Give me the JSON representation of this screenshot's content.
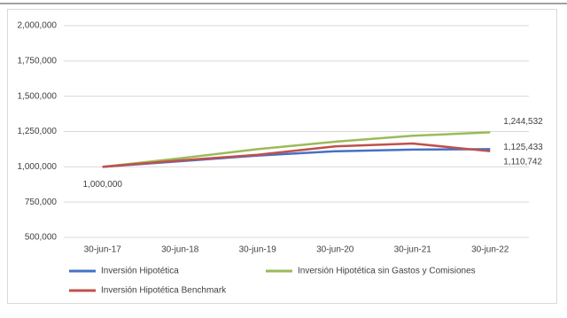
{
  "chart_data": {
    "type": "line",
    "categories": [
      "30-jun-17",
      "30-jun-18",
      "30-jun-19",
      "30-jun-20",
      "30-jun-21",
      "30-jun-22"
    ],
    "series": [
      {
        "name": "Inversión Hipotética",
        "color": "#4472c4",
        "values": [
          1000000,
          1040000,
          1080000,
          1110000,
          1122000,
          1125433
        ],
        "value_labels": [
          "1,000,000",
          null,
          null,
          null,
          null,
          "1,125,433"
        ]
      },
      {
        "name": "Inversión Hipotética sin Gastos y Comisiones",
        "color": "#9bbb59",
        "values": [
          1000000,
          1060000,
          1125000,
          1178000,
          1220000,
          1244532
        ],
        "value_labels": [
          null,
          null,
          null,
          null,
          null,
          "1,244,532"
        ]
      },
      {
        "name": "Inversión Hipotética Benchmark",
        "color": "#c0504d",
        "values": [
          1000000,
          1045000,
          1085000,
          1145000,
          1165000,
          1110742
        ],
        "value_labels": [
          null,
          null,
          null,
          null,
          null,
          "1,110,742"
        ]
      }
    ],
    "ylim": [
      500000,
      2000000
    ],
    "yticks": [
      {
        "value": 500000,
        "label": "500,000"
      },
      {
        "value": 750000,
        "label": "750,000"
      },
      {
        "value": 1000000,
        "label": "1,000,000"
      },
      {
        "value": 1250000,
        "label": "1,250,000"
      },
      {
        "value": 1500000,
        "label": "1,500,000"
      },
      {
        "value": 1750000,
        "label": "1,750,000"
      },
      {
        "value": 2000000,
        "label": "2,000,000"
      }
    ],
    "grid": true,
    "legend": "bottom"
  }
}
